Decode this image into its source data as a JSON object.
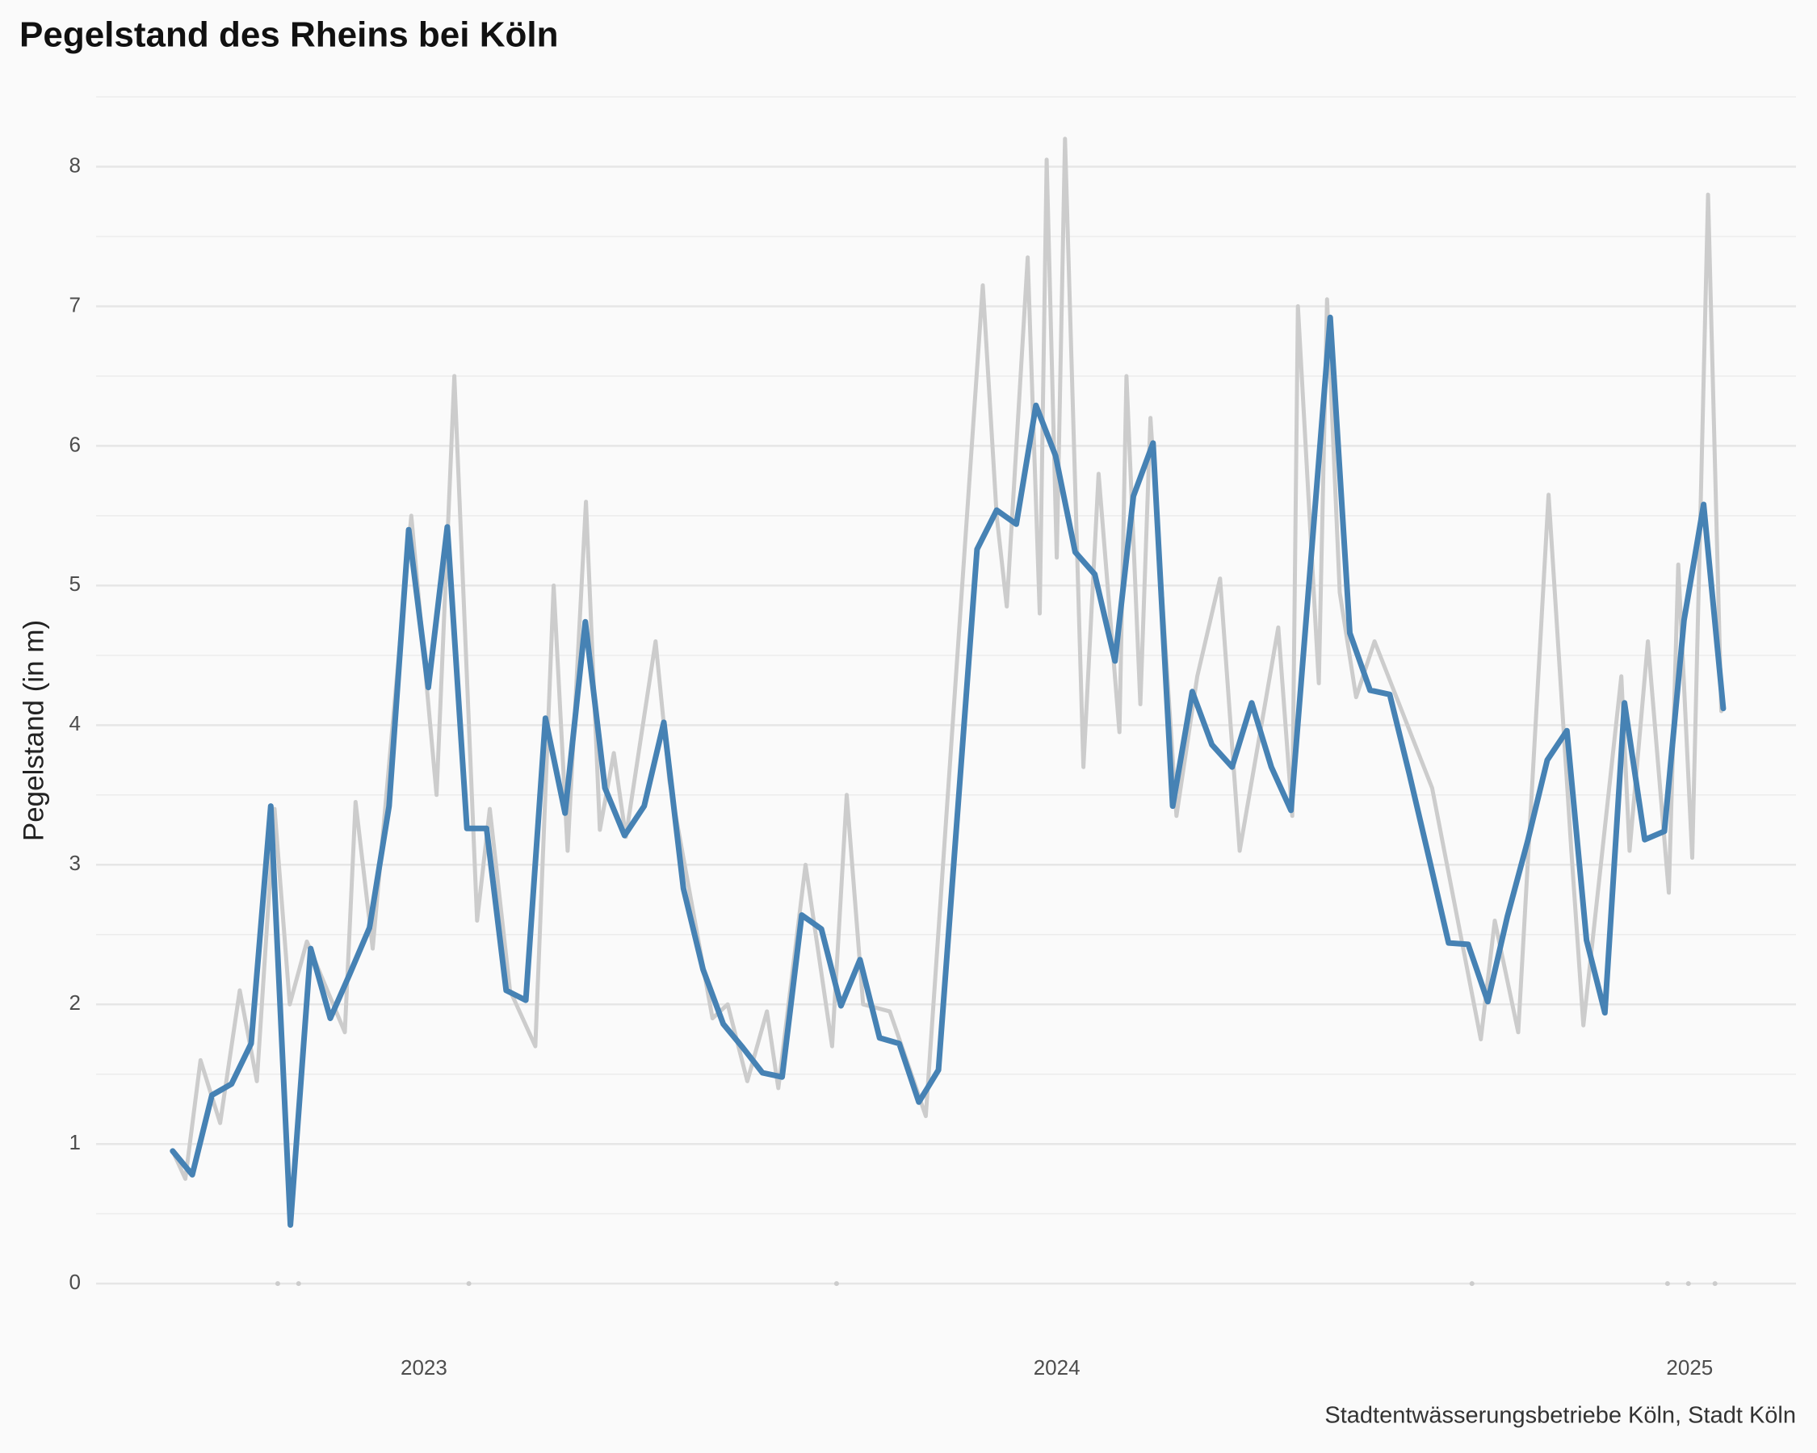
{
  "chart_data": {
    "type": "line",
    "title": "Pegelstand des Rheins bei Köln",
    "y_label": "Pegelstand (in m)",
    "caption": "Stadtentwässerungsbetriebe Köln, Stadt Köln",
    "xlim": [
      2022.482,
      2025.168
    ],
    "xticks": [
      2023,
      2024,
      2025
    ],
    "ylim": [
      -0.45,
      8.5
    ],
    "yticks": [
      0,
      1,
      2,
      3,
      4,
      5,
      6,
      7,
      8
    ],
    "grid": true,
    "minor_grid": true,
    "series": [
      {
        "color": "#cccccc",
        "style": "line",
        "x": [
          2022.603,
          2022.623,
          2022.647,
          2022.678,
          2022.709,
          2022.736,
          2022.764,
          2022.788,
          2022.815,
          2022.875,
          2022.892,
          2022.919,
          2022.98,
          2023.02,
          2023.048,
          2023.084,
          2023.104,
          2023.136,
          2023.176,
          2023.205,
          2023.227,
          2023.256,
          2023.278,
          2023.3,
          2023.319,
          2023.366,
          2023.388,
          2023.456,
          2023.48,
          2023.511,
          2023.542,
          2023.56,
          2023.603,
          2023.645,
          2023.668,
          2023.694,
          2023.736,
          2023.793,
          2023.883,
          2023.905,
          2023.921,
          2023.954,
          2023.973,
          2023.984,
          2024.0,
          2024.013,
          2024.042,
          2024.066,
          2024.099,
          2024.11,
          2024.132,
          2024.148,
          2024.189,
          2024.222,
          2024.258,
          2024.289,
          2024.35,
          2024.372,
          2024.381,
          2024.414,
          2024.427,
          2024.447,
          2024.473,
          2024.502,
          2024.593,
          2024.67,
          2024.692,
          2024.729,
          2024.777,
          2024.813,
          2024.832,
          2024.892,
          2024.905,
          2024.934,
          2024.967,
          2024.982,
          2025.004,
          2025.029,
          2025.05
        ],
        "values": [
          0.95,
          0.75,
          1.6,
          1.15,
          2.1,
          1.45,
          3.4,
          2.0,
          2.45,
          1.8,
          3.45,
          2.4,
          5.5,
          3.5,
          6.5,
          2.6,
          3.4,
          2.1,
          1.7,
          5.0,
          3.1,
          5.6,
          3.25,
          3.8,
          3.2,
          4.6,
          3.6,
          1.9,
          2.0,
          1.45,
          1.95,
          1.4,
          3.0,
          1.7,
          3.5,
          2.0,
          1.95,
          1.2,
          7.15,
          5.5,
          4.85,
          7.35,
          4.8,
          8.05,
          5.2,
          8.2,
          3.7,
          5.8,
          3.95,
          6.5,
          4.15,
          6.2,
          3.35,
          4.35,
          5.05,
          3.1,
          4.7,
          3.35,
          7.0,
          4.3,
          7.05,
          4.95,
          4.2,
          4.6,
          3.55,
          1.75,
          2.6,
          1.8,
          5.65,
          3.1,
          1.85,
          4.35,
          3.1,
          4.6,
          2.8,
          5.15,
          3.05,
          7.8,
          4.1
        ]
      },
      {
        "color": "#cccccc",
        "style": "points",
        "x": [
          2022.769,
          2022.802,
          2023.071,
          2023.652,
          2024.656,
          2024.965,
          2024.998,
          2025.04
        ],
        "values": [
          0,
          0,
          0,
          0,
          0,
          0,
          0,
          0
        ]
      },
      {
        "color": "#4682b4",
        "style": "line",
        "x": [
          2022.603,
          2022.634,
          2022.665,
          2022.696,
          2022.727,
          2022.758,
          2022.789,
          2022.821,
          2022.852,
          2022.883,
          2022.914,
          2022.945,
          2022.976,
          2023.007,
          2023.037,
          2023.068,
          2023.099,
          2023.13,
          2023.161,
          2023.192,
          2023.223,
          2023.255,
          2023.286,
          2023.317,
          2023.348,
          2023.379,
          2023.41,
          2023.441,
          2023.473,
          2023.504,
          2023.535,
          2023.566,
          2023.597,
          2023.628,
          2023.659,
          2023.689,
          2023.72,
          2023.751,
          2023.782,
          2023.813,
          2023.874,
          2023.905,
          2023.936,
          2023.967,
          2023.998,
          2024.029,
          2024.06,
          2024.092,
          2024.121,
          2024.152,
          2024.183,
          2024.214,
          2024.245,
          2024.277,
          2024.308,
          2024.339,
          2024.37,
          2024.432,
          2024.463,
          2024.495,
          2024.526,
          2024.557,
          2024.588,
          2024.619,
          2024.65,
          2024.681,
          2024.712,
          2024.744,
          2024.775,
          2024.806,
          2024.837,
          2024.866,
          2024.897,
          2024.929,
          2024.96,
          2024.991,
          2025.022,
          2025.053
        ],
        "values": [
          0.95,
          0.78,
          1.35,
          1.43,
          1.72,
          3.42,
          0.42,
          2.4,
          1.9,
          2.22,
          2.55,
          3.42,
          5.4,
          4.27,
          5.42,
          3.26,
          3.26,
          2.1,
          2.03,
          4.05,
          3.37,
          4.74,
          3.55,
          3.21,
          3.42,
          4.02,
          2.83,
          2.25,
          1.86,
          1.69,
          1.51,
          1.48,
          2.64,
          2.54,
          1.99,
          2.32,
          1.76,
          1.72,
          1.3,
          1.53,
          5.26,
          5.54,
          5.44,
          6.29,
          5.93,
          5.24,
          5.08,
          4.46,
          5.64,
          6.02,
          3.42,
          4.24,
          3.86,
          3.7,
          4.16,
          3.7,
          3.39,
          6.92,
          4.66,
          4.25,
          4.22,
          3.65,
          3.05,
          2.44,
          2.43,
          2.02,
          2.63,
          3.17,
          3.75,
          3.96,
          2.46,
          1.94,
          4.16,
          3.18,
          3.24,
          4.75,
          5.58,
          4.12
        ]
      }
    ]
  }
}
